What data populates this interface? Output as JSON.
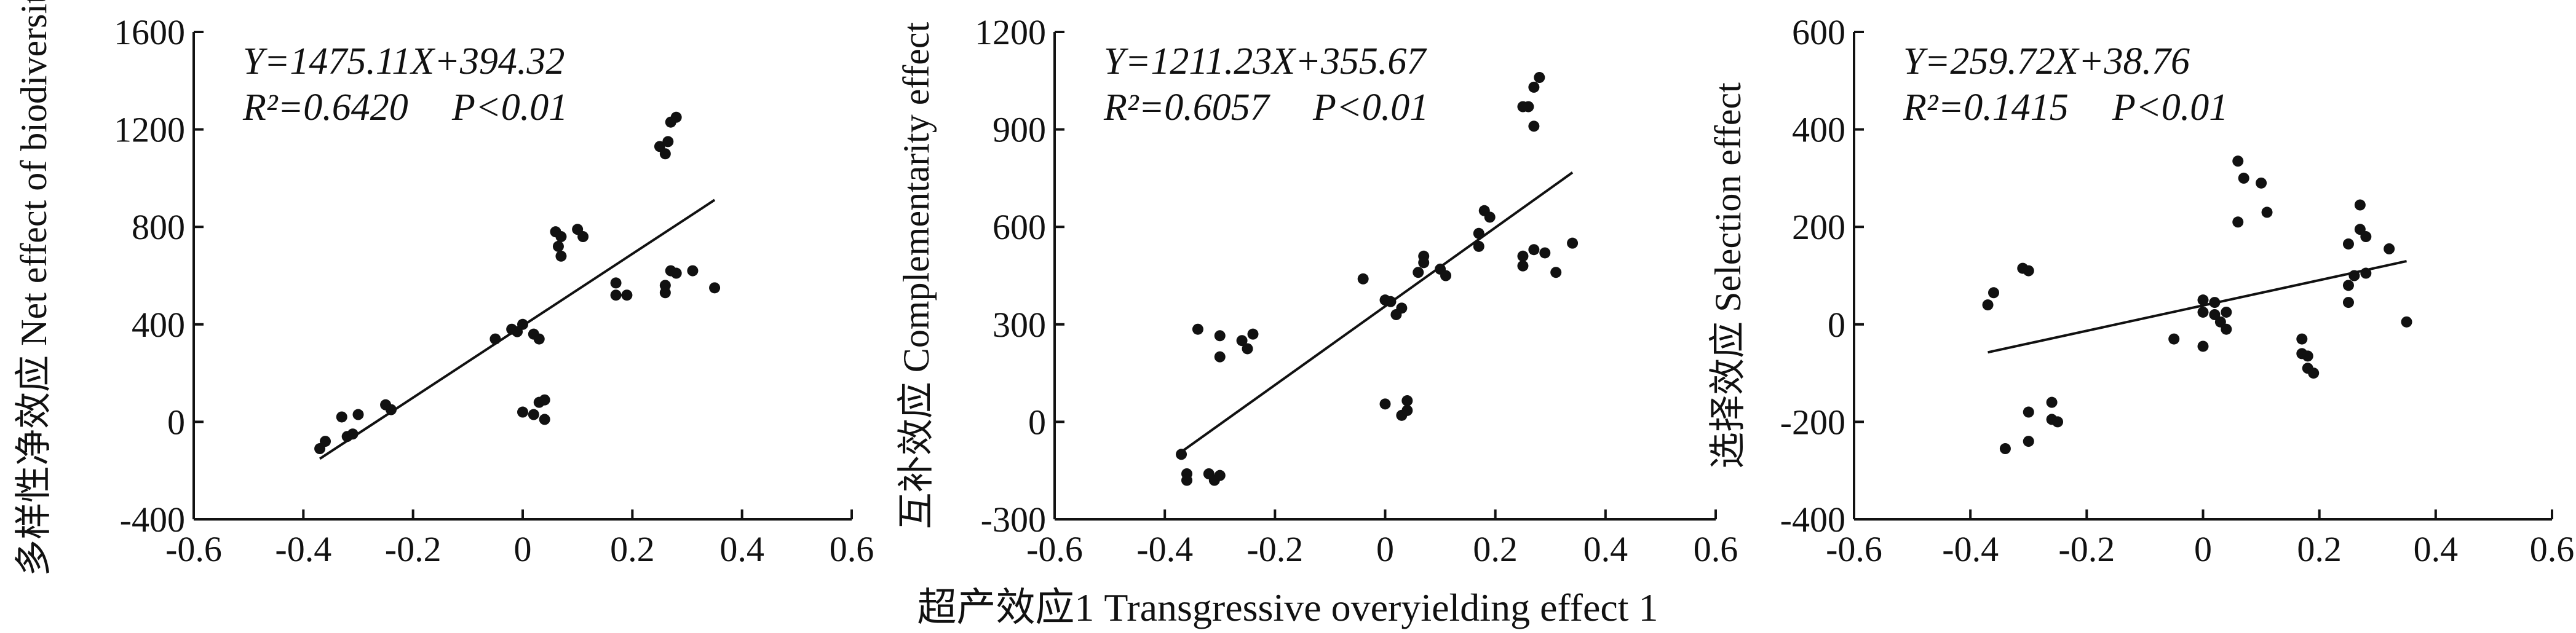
{
  "figure": {
    "xlabel": "超产效应1 Transgressive overyielding effect 1"
  },
  "chart_data": [
    {
      "type": "scatter",
      "ylabel": "多样性净效应 Net effect of biodiversity",
      "xlim": [
        -0.6,
        0.6
      ],
      "ylim": [
        -400,
        1600
      ],
      "xticks": [
        "-0.6",
        "-0.4",
        "-0.2",
        "0",
        "0.2",
        "0.4",
        "0.6"
      ],
      "yticks": [
        "-400",
        "0",
        "400",
        "800",
        "1200",
        "1600"
      ],
      "equation": "Y=1475.11X+394.32",
      "r2_text": "R²=0.6420",
      "p_text": "P<0.01",
      "fit": {
        "slope": 1475.11,
        "intercept": 394.32,
        "x_range": [
          -0.37,
          0.35
        ]
      },
      "points": [
        [
          -0.37,
          -110
        ],
        [
          -0.36,
          -80
        ],
        [
          -0.33,
          20
        ],
        [
          -0.32,
          -60
        ],
        [
          -0.31,
          -50
        ],
        [
          -0.3,
          30
        ],
        [
          -0.25,
          70
        ],
        [
          -0.24,
          50
        ],
        [
          -0.05,
          340
        ],
        [
          -0.02,
          380
        ],
        [
          -0.01,
          370
        ],
        [
          0.0,
          400
        ],
        [
          0.02,
          360
        ],
        [
          0.03,
          340
        ],
        [
          0.0,
          40
        ],
        [
          0.02,
          30
        ],
        [
          0.03,
          80
        ],
        [
          0.04,
          90
        ],
        [
          0.04,
          10
        ],
        [
          0.06,
          780
        ],
        [
          0.065,
          720
        ],
        [
          0.07,
          680
        ],
        [
          0.07,
          760
        ],
        [
          0.1,
          790
        ],
        [
          0.11,
          760
        ],
        [
          0.17,
          520
        ],
        [
          0.17,
          570
        ],
        [
          0.19,
          520
        ],
        [
          0.26,
          530
        ],
        [
          0.26,
          560
        ],
        [
          0.27,
          620
        ],
        [
          0.28,
          610
        ],
        [
          0.31,
          620
        ],
        [
          0.35,
          550
        ],
        [
          0.25,
          1130
        ],
        [
          0.26,
          1100
        ],
        [
          0.265,
          1150
        ],
        [
          0.27,
          1230
        ],
        [
          0.28,
          1250
        ]
      ]
    },
    {
      "type": "scatter",
      "ylabel": "互补效应 Complementarity effect",
      "xlim": [
        -0.6,
        0.6
      ],
      "ylim": [
        -300,
        1200
      ],
      "xticks": [
        "-0.6",
        "-0.4",
        "-0.2",
        "0",
        "0.2",
        "0.4",
        "0.6"
      ],
      "yticks": [
        "-300",
        "0",
        "300",
        "600",
        "900",
        "1200"
      ],
      "equation": "Y=1211.23X+355.67",
      "r2_text": "R²=0.6057",
      "p_text": "P<0.01",
      "fit": {
        "slope": 1211.23,
        "intercept": 355.67,
        "x_range": [
          -0.37,
          0.34
        ]
      },
      "points": [
        [
          -0.37,
          -100
        ],
        [
          -0.36,
          -160
        ],
        [
          -0.36,
          -180
        ],
        [
          -0.32,
          -160
        ],
        [
          -0.31,
          -180
        ],
        [
          -0.3,
          -165
        ],
        [
          -0.34,
          285
        ],
        [
          -0.3,
          265
        ],
        [
          -0.3,
          200
        ],
        [
          -0.26,
          250
        ],
        [
          -0.25,
          225
        ],
        [
          -0.24,
          270
        ],
        [
          -0.04,
          440
        ],
        [
          0.0,
          375
        ],
        [
          0.01,
          370
        ],
        [
          0.02,
          330
        ],
        [
          0.03,
          350
        ],
        [
          0.0,
          55
        ],
        [
          0.03,
          20
        ],
        [
          0.04,
          35
        ],
        [
          0.04,
          65
        ],
        [
          0.06,
          460
        ],
        [
          0.07,
          510
        ],
        [
          0.07,
          490
        ],
        [
          0.1,
          470
        ],
        [
          0.11,
          450
        ],
        [
          0.17,
          540
        ],
        [
          0.17,
          580
        ],
        [
          0.18,
          650
        ],
        [
          0.19,
          630
        ],
        [
          0.25,
          510
        ],
        [
          0.25,
          480
        ],
        [
          0.27,
          530
        ],
        [
          0.29,
          520
        ],
        [
          0.31,
          460
        ],
        [
          0.34,
          550
        ],
        [
          0.25,
          970
        ],
        [
          0.26,
          970
        ],
        [
          0.27,
          1030
        ],
        [
          0.27,
          910
        ],
        [
          0.28,
          1060
        ]
      ]
    },
    {
      "type": "scatter",
      "ylabel": "选择效应 Selection effect",
      "xlim": [
        -0.6,
        0.6
      ],
      "ylim": [
        -400,
        600
      ],
      "xticks": [
        "-0.6",
        "-0.4",
        "-0.2",
        "0",
        "0.2",
        "0.4",
        "0.6"
      ],
      "yticks": [
        "-400",
        "-200",
        "0",
        "200",
        "400",
        "600"
      ],
      "equation": "Y=259.72X+38.76",
      "r2_text": "R²=0.1415",
      "p_text": "P<0.01",
      "fit": {
        "slope": 259.72,
        "intercept": 38.76,
        "x_range": [
          -0.37,
          0.35
        ]
      },
      "points": [
        [
          -0.37,
          40
        ],
        [
          -0.36,
          65
        ],
        [
          -0.31,
          115
        ],
        [
          -0.3,
          110
        ],
        [
          -0.34,
          -255
        ],
        [
          -0.3,
          -240
        ],
        [
          -0.3,
          -180
        ],
        [
          -0.26,
          -160
        ],
        [
          -0.26,
          -195
        ],
        [
          -0.25,
          -200
        ],
        [
          -0.05,
          -30
        ],
        [
          0.0,
          50
        ],
        [
          0.0,
          25
        ],
        [
          0.02,
          20
        ],
        [
          0.02,
          45
        ],
        [
          0.03,
          5
        ],
        [
          0.04,
          25
        ],
        [
          0.04,
          -10
        ],
        [
          0.0,
          -45
        ],
        [
          0.06,
          335
        ],
        [
          0.06,
          210
        ],
        [
          0.07,
          300
        ],
        [
          0.1,
          290
        ],
        [
          0.11,
          230
        ],
        [
          0.17,
          -30
        ],
        [
          0.17,
          -60
        ],
        [
          0.18,
          -65
        ],
        [
          0.18,
          -90
        ],
        [
          0.19,
          -100
        ],
        [
          0.25,
          45
        ],
        [
          0.25,
          80
        ],
        [
          0.26,
          100
        ],
        [
          0.25,
          165
        ],
        [
          0.27,
          245
        ],
        [
          0.27,
          195
        ],
        [
          0.28,
          180
        ],
        [
          0.28,
          105
        ],
        [
          0.32,
          155
        ],
        [
          0.35,
          5
        ]
      ]
    }
  ]
}
